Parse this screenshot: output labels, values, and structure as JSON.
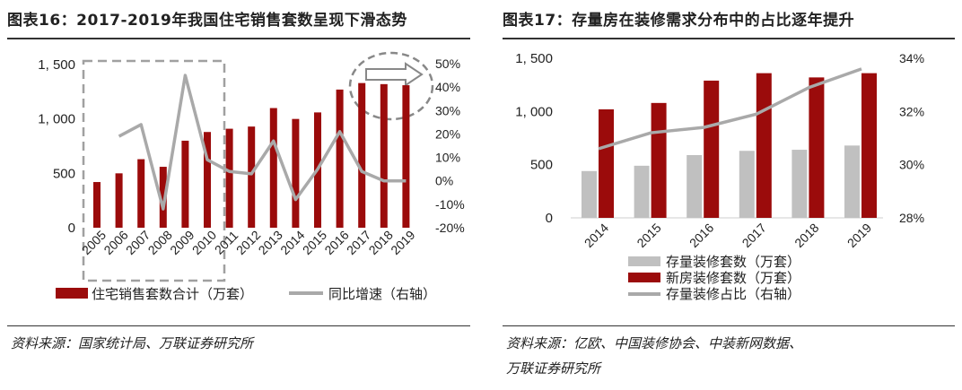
{
  "left_title": "图表16：2017-2019年我国住宅销售套数呈现下滑态势",
  "right_title": "图表17：存量房在装修需求分布中的占比逐年提升",
  "left_source": "资料来源：国家统计局、万联证券研究所",
  "right_source_line1": "资料来源：亿欧、中国装修协会、中装新网数据、",
  "right_source_line2": "万联证券研究所",
  "colors": {
    "bar_red": "#9b0b0b",
    "bar_gray": "#c0c0c0",
    "line_gray": "#a9a9a9",
    "dash": "#a0a0a0"
  },
  "chart_data": [
    {
      "type": "bar",
      "categories": [
        "2005",
        "2006",
        "2007",
        "2008",
        "2009",
        "2010",
        "2011",
        "2012",
        "2013",
        "2014",
        "2015",
        "2016",
        "2017",
        "2018",
        "2019"
      ],
      "series": [
        {
          "name": "住宅销售套数合计（万套）",
          "axis": "left",
          "type": "bar",
          "values": [
            420,
            500,
            630,
            560,
            800,
            880,
            910,
            930,
            1100,
            1000,
            1060,
            1270,
            1330,
            1320,
            1310
          ]
        },
        {
          "name": "同比增速（右轴）",
          "axis": "right",
          "type": "line",
          "values": [
            null,
            19,
            24,
            -12,
            45,
            9,
            4,
            3,
            17,
            -8,
            5,
            21,
            4,
            0,
            0
          ]
        }
      ],
      "left_axis": {
        "ylim": [
          0,
          1500
        ],
        "ticks": [
          "0",
          "500",
          "1, 000",
          "1, 500"
        ]
      },
      "right_axis": {
        "ylim": [
          -20,
          50
        ],
        "ticks": [
          "-20%",
          "-10%",
          "0%",
          "10%",
          "20%",
          "30%",
          "40%",
          "50%"
        ]
      }
    },
    {
      "type": "bar",
      "categories": [
        "2014",
        "2015",
        "2016",
        "2017",
        "2018",
        "2019"
      ],
      "series": [
        {
          "name": "存量装修套数（万套）",
          "axis": "left",
          "type": "bar",
          "values": [
            440,
            490,
            590,
            630,
            640,
            680
          ]
        },
        {
          "name": "新房装修套数（万套）",
          "axis": "left",
          "type": "bar",
          "values": [
            1020,
            1080,
            1290,
            1360,
            1320,
            1360
          ]
        },
        {
          "name": "存量装修占比（右轴）",
          "axis": "right",
          "type": "line",
          "values": [
            30.6,
            31.2,
            31.4,
            31.9,
            32.9,
            33.6
          ]
        }
      ],
      "left_axis": {
        "ylim": [
          0,
          1500
        ],
        "ticks": [
          "0",
          "500",
          "1, 000",
          "1, 500"
        ]
      },
      "right_axis": {
        "ylim": [
          28,
          34
        ],
        "ticks": [
          "28%",
          "30%",
          "32%",
          "34%"
        ]
      }
    }
  ]
}
